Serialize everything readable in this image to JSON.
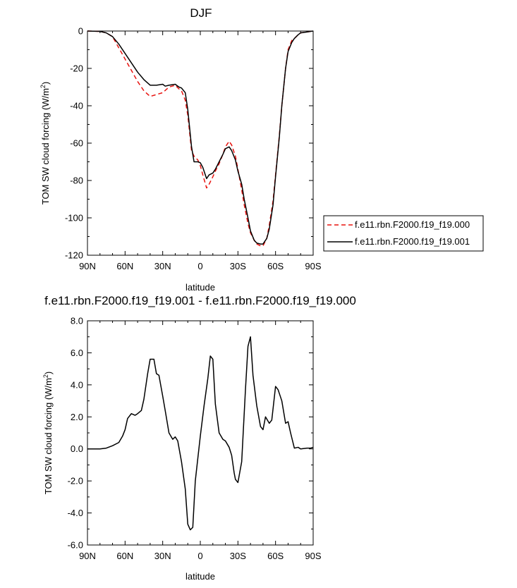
{
  "chart_data": [
    {
      "type": "line",
      "title": "DJF",
      "xlabel": "latitude",
      "ylabel": "TOM SW cloud forcing (W/m",
      "ylabel_sup": "2",
      "ylabel_close": ")",
      "xlim": [
        -90,
        90
      ],
      "ylim": [
        -120,
        0
      ],
      "xticks": [
        -90,
        -60,
        -30,
        0,
        30,
        60,
        90
      ],
      "xtick_labels": [
        "90N",
        "60N",
        "30N",
        "0",
        "30S",
        "60S",
        "90S"
      ],
      "yticks": [
        0,
        -20,
        -40,
        -60,
        -80,
        -100,
        -120
      ],
      "ytick_labels": [
        "0",
        "-20",
        "-40",
        "-60",
        "-80",
        "-100",
        "-120"
      ],
      "legend_position": "right",
      "series": [
        {
          "name": "f.e11.rbn.F2000.f19_f19.000",
          "color": "#e8130f",
          "dash": "dashed",
          "x": [
            -90,
            -80,
            -75,
            -70,
            -65,
            -60,
            -55,
            -50,
            -45,
            -40,
            -35,
            -30,
            -25,
            -20,
            -17,
            -15,
            -12,
            -10,
            -7,
            -5,
            -2,
            0,
            2,
            5,
            7,
            10,
            12,
            15,
            18,
            20,
            23,
            25,
            28,
            30,
            33,
            35,
            38,
            40,
            43,
            45,
            48,
            50,
            53,
            55,
            58,
            60,
            63,
            65,
            68,
            70,
            73,
            75,
            78,
            80,
            85,
            88,
            90
          ],
          "y": [
            0,
            -0.2,
            -1,
            -3,
            -9,
            -15,
            -21,
            -27,
            -32,
            -35,
            -34,
            -33,
            -30,
            -29,
            -31,
            -32,
            -37,
            -45,
            -64,
            -67,
            -69,
            -72,
            -77,
            -84,
            -82,
            -78,
            -75,
            -71,
            -66,
            -62,
            -59,
            -61,
            -67,
            -74,
            -85,
            -93,
            -103,
            -108,
            -112,
            -114,
            -115,
            -115,
            -111,
            -104,
            -91,
            -77,
            -56,
            -40,
            -20,
            -10,
            -5,
            -4,
            -2,
            -1,
            -0.5,
            -0.2,
            0
          ]
        },
        {
          "name": "f.e11.rbn.F2000.f19_f19.001",
          "color": "#000000",
          "dash": "solid",
          "x": [
            -90,
            -80,
            -75,
            -70,
            -65,
            -60,
            -55,
            -50,
            -45,
            -40,
            -35,
            -30,
            -28,
            -25,
            -20,
            -17,
            -15,
            -12,
            -10,
            -7,
            -5,
            -2,
            0,
            2,
            5,
            7,
            10,
            12,
            15,
            18,
            20,
            23,
            25,
            28,
            30,
            33,
            35,
            38,
            40,
            43,
            45,
            48,
            50,
            53,
            55,
            58,
            60,
            63,
            65,
            68,
            70,
            73,
            75,
            78,
            80,
            85,
            88,
            90
          ],
          "y": [
            0,
            -0.2,
            -1,
            -3,
            -7,
            -12,
            -17,
            -22,
            -26,
            -29,
            -29,
            -28.5,
            -29.5,
            -29,
            -28.5,
            -30,
            -30.5,
            -33,
            -42,
            -62,
            -70,
            -70,
            -70.5,
            -73,
            -79,
            -77,
            -76,
            -74,
            -70,
            -66,
            -63,
            -62,
            -64,
            -69,
            -75,
            -82,
            -90,
            -100,
            -107,
            -112,
            -113.5,
            -114,
            -114,
            -111,
            -106,
            -93,
            -78,
            -57,
            -40,
            -20,
            -11,
            -6,
            -4,
            -2,
            -1,
            -0.5,
            -0.2,
            0
          ]
        }
      ]
    },
    {
      "type": "line",
      "title": "f.e11.rbn.F2000.f19_f19.001 - f.e11.rbn.F2000.f19_f19.000",
      "xlabel": "latitude",
      "ylabel": "TOM SW cloud forcing (W/m",
      "ylabel_sup": "2",
      "ylabel_close": ")",
      "xlim": [
        -90,
        90
      ],
      "ylim": [
        -6,
        8
      ],
      "xticks": [
        -90,
        -60,
        -30,
        0,
        30,
        60,
        90
      ],
      "xtick_labels": [
        "90N",
        "60N",
        "30N",
        "0",
        "30S",
        "60S",
        "90S"
      ],
      "yticks": [
        8,
        6,
        4,
        2,
        0,
        -2,
        -4,
        -6
      ],
      "ytick_labels": [
        "8.0",
        "6.0",
        "4.0",
        "2.0",
        "0.0",
        "-2.0",
        "-4.0",
        "-6.0"
      ],
      "series": [
        {
          "color": "#000000",
          "dash": "solid",
          "x": [
            -90,
            -80,
            -75,
            -70,
            -65,
            -62,
            -60,
            -58,
            -55,
            -52,
            -50,
            -47,
            -45,
            -42,
            -40,
            -37,
            -35,
            -33,
            -30,
            -28,
            -25,
            -22,
            -20,
            -18,
            -15,
            -12,
            -10,
            -8,
            -6,
            -4,
            0,
            3,
            6,
            8,
            10,
            12,
            15,
            18,
            20,
            23,
            25,
            27,
            28,
            30,
            33,
            36,
            38,
            40,
            42,
            45,
            48,
            50,
            52,
            55,
            57,
            60,
            62,
            65,
            68,
            70,
            72,
            75,
            78,
            80,
            85,
            88,
            90
          ],
          "y": [
            0,
            0,
            0.05,
            0.2,
            0.4,
            0.8,
            1.2,
            1.9,
            2.2,
            2.1,
            2.2,
            2.4,
            3.1,
            4.7,
            5.6,
            5.6,
            4.7,
            4.6,
            3.3,
            2.4,
            1.0,
            0.6,
            0.75,
            0.5,
            -0.8,
            -2.5,
            -4.7,
            -5.05,
            -4.9,
            -2.0,
            0.8,
            2.7,
            4.4,
            5.8,
            5.6,
            2.8,
            1.0,
            0.6,
            0.5,
            0.1,
            -0.4,
            -1.5,
            -1.9,
            -2.1,
            -0.8,
            3.7,
            6.4,
            7.0,
            4.6,
            2.7,
            1.4,
            1.2,
            2.0,
            1.6,
            1.8,
            3.9,
            3.7,
            3.0,
            1.6,
            1.7,
            1.0,
            0.05,
            0.1,
            0.0,
            0.05,
            0.05,
            0.1
          ]
        }
      ]
    }
  ]
}
